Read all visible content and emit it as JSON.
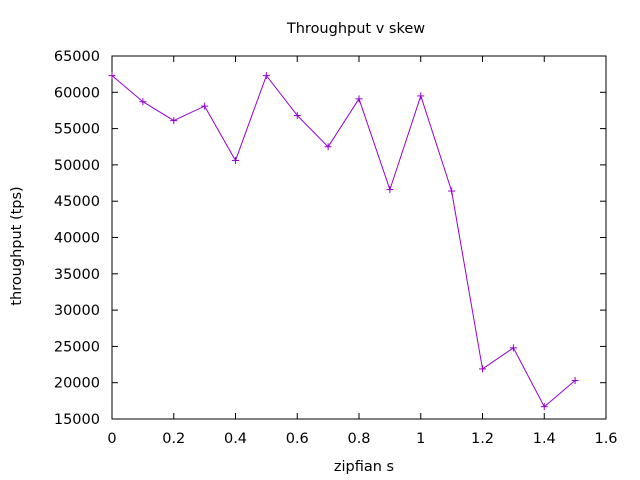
{
  "chart_data": {
    "type": "line",
    "title": "Throughput v skew",
    "xlabel": "zipfian s",
    "ylabel": "throughput (tps)",
    "xlim": [
      0,
      1.6
    ],
    "ylim": [
      15000,
      65000
    ],
    "xticks": [
      0,
      0.2,
      0.4,
      0.6,
      0.8,
      1,
      1.2,
      1.4,
      1.6
    ],
    "xtick_labels": [
      "0",
      "0.2",
      "0.4",
      "0.6",
      "0.8",
      "1",
      "1.2",
      "1.4",
      "1.6"
    ],
    "yticks": [
      15000,
      20000,
      25000,
      30000,
      35000,
      40000,
      45000,
      50000,
      55000,
      60000,
      65000
    ],
    "ytick_labels": [
      "15000",
      "20000",
      "25000",
      "30000",
      "35000",
      "40000",
      "45000",
      "50000",
      "55000",
      "60000",
      "65000"
    ],
    "grid": false,
    "legend": "none",
    "series": [
      {
        "color": "#9400d3",
        "marker": "plus",
        "x": [
          0,
          0.1,
          0.2,
          0.3,
          0.4,
          0.5,
          0.6,
          0.7,
          0.8,
          0.9,
          1.0,
          1.1,
          1.2,
          1.3,
          1.4,
          1.5
        ],
        "y": [
          62300,
          58700,
          56100,
          58100,
          50600,
          62300,
          56800,
          52500,
          59100,
          46600,
          59500,
          46400,
          21900,
          24800,
          16700,
          20300
        ]
      }
    ]
  }
}
